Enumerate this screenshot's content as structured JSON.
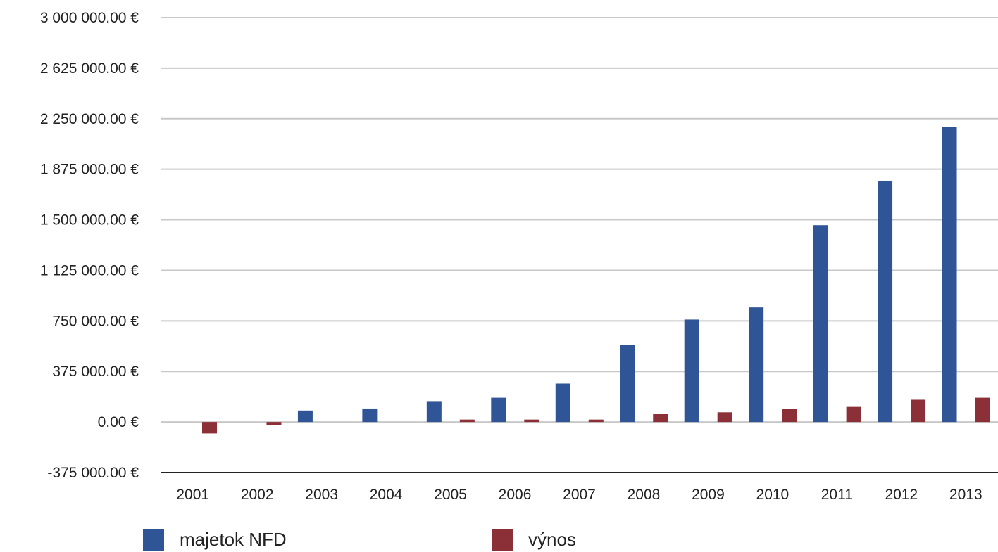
{
  "chart_data": {
    "type": "bar",
    "title": "",
    "xlabel": "",
    "ylabel": "",
    "categories": [
      "2001",
      "2002",
      "2003",
      "2004",
      "2005",
      "2006",
      "2007",
      "2008",
      "2009",
      "2010",
      "2011",
      "2012",
      "2013"
    ],
    "series": [
      {
        "name": "majetok NFD",
        "color": "#2f5597",
        "values": [
          0,
          0,
          85000,
          100000,
          155000,
          180000,
          285000,
          570000,
          760000,
          850000,
          1460000,
          1790000,
          2190000
        ]
      },
      {
        "name": "výnos",
        "color": "#8b3036",
        "values": [
          -85000,
          -25000,
          0,
          0,
          18000,
          18000,
          18000,
          58000,
          72000,
          98000,
          112000,
          165000,
          180000
        ]
      }
    ],
    "ylim": [
      -375000,
      3000000
    ],
    "yticks": [
      -375000,
      0,
      375000,
      750000,
      1125000,
      1500000,
      1875000,
      2250000,
      2625000,
      3000000
    ],
    "ytick_labels": [
      "-375 000.00 €",
      "0.00 €",
      "375 000.00 €",
      "750 000.00 €",
      "1 125 000.00 €",
      "1 500 000.00 €",
      "1 875 000.00 €",
      "2 250 000.00 €",
      "2 625 000.00 €",
      "3 000 000.00 €"
    ],
    "grid": true,
    "legend_position": "bottom"
  }
}
